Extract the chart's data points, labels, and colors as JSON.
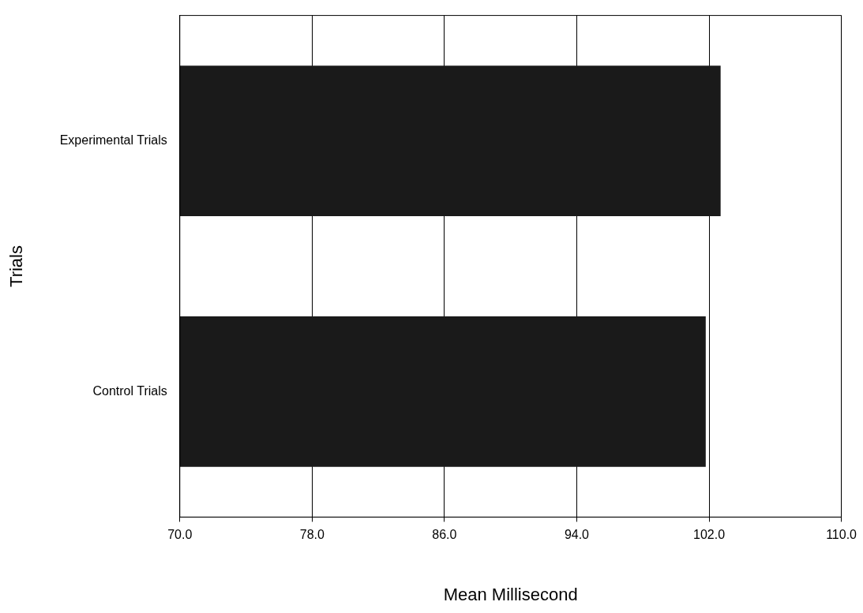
{
  "chart_data": {
    "type": "bar",
    "orientation": "horizontal",
    "xlabel": "Mean Millisecond",
    "ylabel": "Trials",
    "categories": [
      "Experimental Trials",
      "Control Trials"
    ],
    "series": [
      {
        "color": "#1a1a1a",
        "values": [
          102.7,
          101.8
        ]
      }
    ],
    "xlim": [
      70,
      110
    ],
    "xticks": [
      {
        "value": 70,
        "label": "70.0"
      },
      {
        "value": 78,
        "label": "78.0"
      },
      {
        "value": 86,
        "label": "86.0"
      },
      {
        "value": 94,
        "label": "94.0"
      },
      {
        "value": 102,
        "label": "102.0"
      },
      {
        "value": 110,
        "label": "110.0"
      }
    ],
    "grid": "x",
    "legend": false
  }
}
